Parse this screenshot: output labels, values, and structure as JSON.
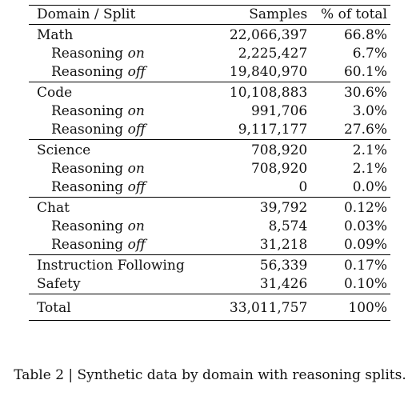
{
  "table": {
    "headers": [
      "Domain / Split",
      "Samples",
      "% of total"
    ],
    "groups": [
      {
        "name": "Math",
        "samples": "22,066,397",
        "pct": "66.8%",
        "rows": [
          {
            "label": "Reasoning",
            "mode": "on",
            "samples": "2,225,427",
            "pct": "6.7%"
          },
          {
            "label": "Reasoning",
            "mode": "off",
            "samples": "19,840,970",
            "pct": "60.1%"
          }
        ]
      },
      {
        "name": "Code",
        "samples": "10,108,883",
        "pct": "30.6%",
        "rows": [
          {
            "label": "Reasoning",
            "mode": "on",
            "samples": "991,706",
            "pct": "3.0%"
          },
          {
            "label": "Reasoning",
            "mode": "off",
            "samples": "9,117,177",
            "pct": "27.6%"
          }
        ]
      },
      {
        "name": "Science",
        "samples": "708,920",
        "pct": "2.1%",
        "rows": [
          {
            "label": "Reasoning",
            "mode": "on",
            "samples": "708,920",
            "pct": "2.1%"
          },
          {
            "label": "Reasoning",
            "mode": "off",
            "samples": "0",
            "pct": "0.0%"
          }
        ]
      },
      {
        "name": "Chat",
        "samples": "39,792",
        "pct": "0.12%",
        "rows": [
          {
            "label": "Reasoning",
            "mode": "on",
            "samples": "8,574",
            "pct": "0.03%"
          },
          {
            "label": "Reasoning",
            "mode": "off",
            "samples": "31,218",
            "pct": "0.09%"
          }
        ]
      }
    ],
    "singles": [
      {
        "name": "Instruction Following",
        "samples": "56,339",
        "pct": "0.17%"
      },
      {
        "name": "Safety",
        "samples": "31,426",
        "pct": "0.10%"
      }
    ],
    "total": {
      "name": "Total",
      "samples": "33,011,757",
      "pct": "100%"
    }
  },
  "caption": "Table 2 | Synthetic data by domain with reasoning splits."
}
